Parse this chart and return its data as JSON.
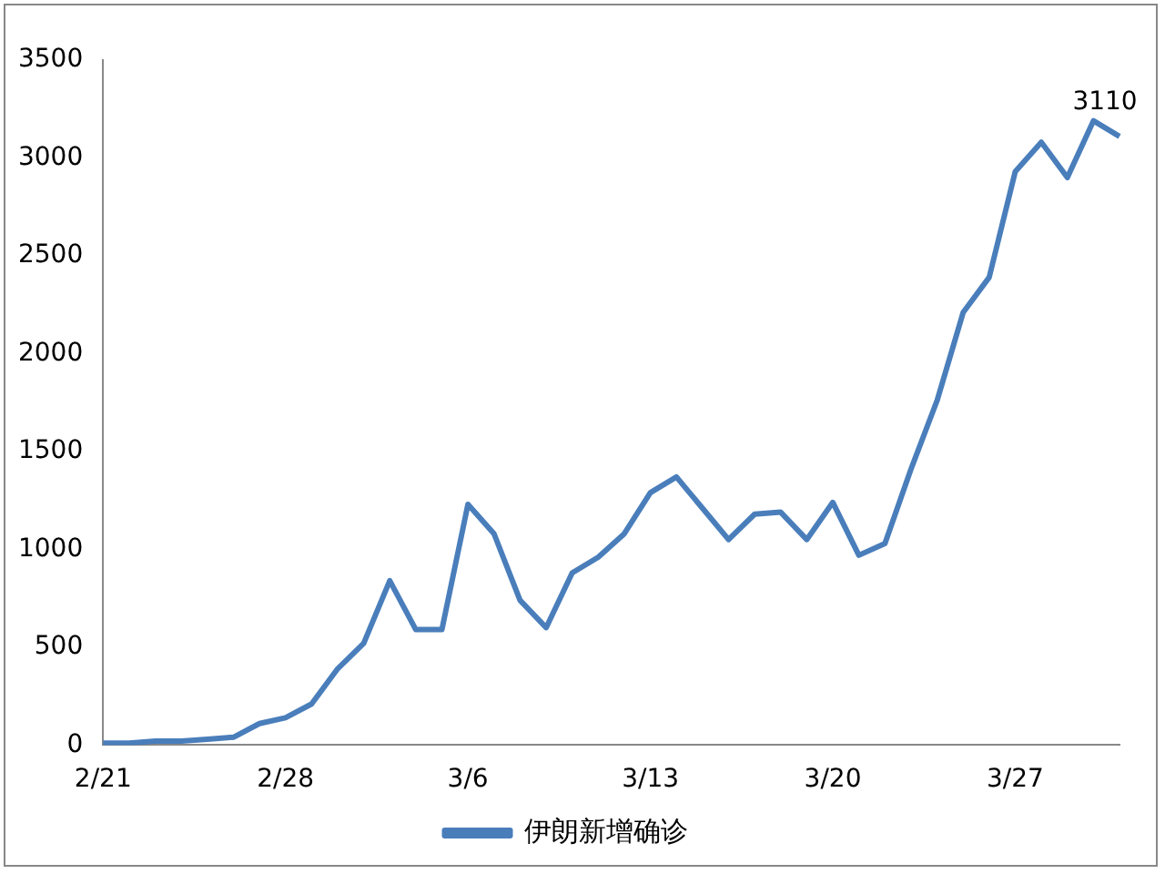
{
  "chart_data": {
    "type": "line",
    "categories": [
      "2/21",
      null,
      null,
      null,
      null,
      null,
      null,
      "2/28",
      null,
      null,
      null,
      null,
      null,
      null,
      "3/6",
      null,
      null,
      null,
      null,
      null,
      null,
      "3/13",
      null,
      null,
      null,
      null,
      null,
      null,
      "3/20",
      null,
      null,
      null,
      null,
      null,
      null,
      "3/27",
      null,
      null,
      null,
      null
    ],
    "series": [
      {
        "name": "伊朗新增确诊",
        "color": "#4a7ebb",
        "values": [
          10,
          10,
          20,
          20,
          30,
          40,
          110,
          140,
          210,
          390,
          520,
          840,
          590,
          590,
          1230,
          1080,
          740,
          600,
          880,
          960,
          1080,
          1290,
          1370,
          1210,
          1050,
          1180,
          1190,
          1050,
          1240,
          970,
          1030,
          1410,
          1760,
          2210,
          2390,
          2930,
          3080,
          2900,
          3190,
          3110
        ]
      }
    ],
    "ylim": [
      0,
      3500
    ],
    "yticks": [
      0,
      500,
      1000,
      1500,
      2000,
      2500,
      3000,
      3500
    ],
    "grid": false,
    "legend": "bottom",
    "marker": "none",
    "line_style": "solid",
    "annotations": [
      "3110"
    ]
  }
}
